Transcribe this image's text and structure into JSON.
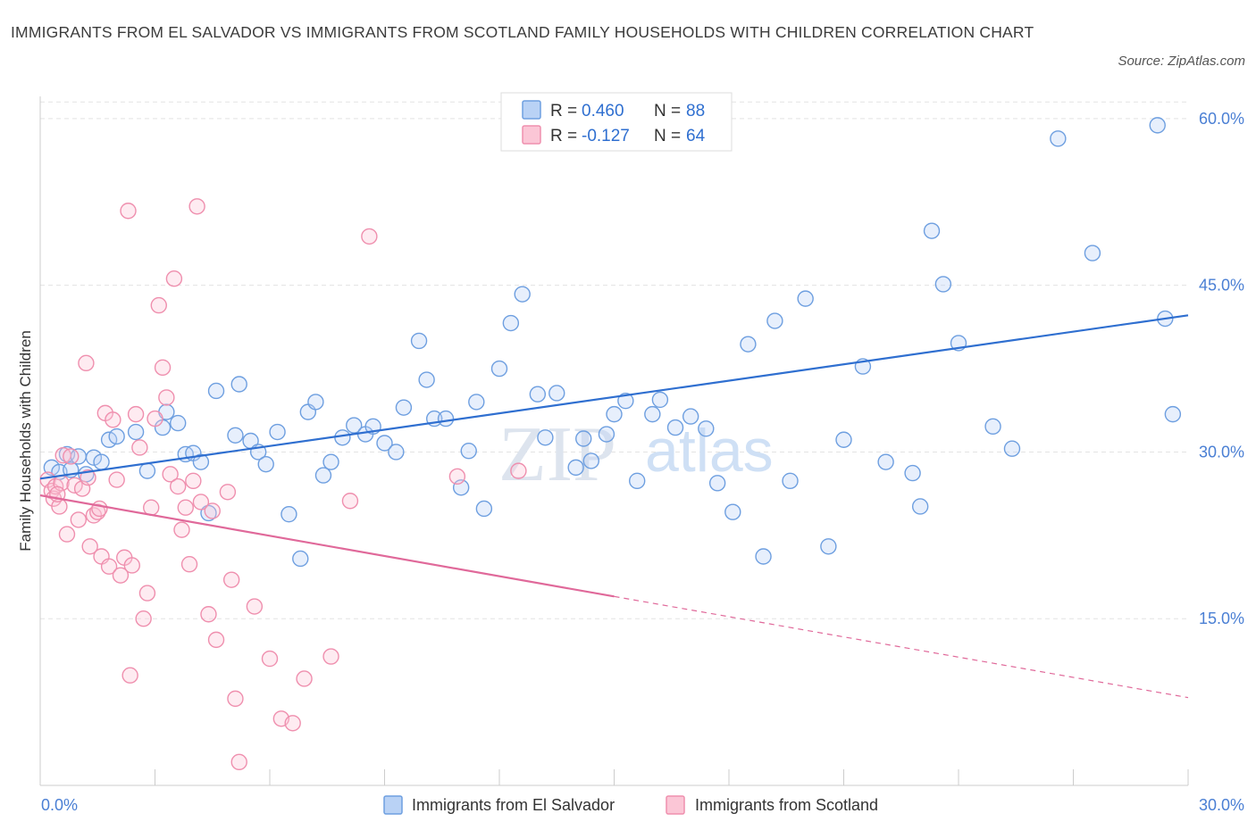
{
  "title": "IMMIGRANTS FROM EL SALVADOR VS IMMIGRANTS FROM SCOTLAND FAMILY HOUSEHOLDS WITH CHILDREN CORRELATION CHART",
  "source": "Source: ZipAtlas.com",
  "watermark": {
    "zip": "ZIP",
    "atlas": "atlas"
  },
  "chart_data": {
    "type": "scatter",
    "title": "IMMIGRANTS FROM EL SALVADOR VS IMMIGRANTS FROM SCOTLAND FAMILY HOUSEHOLDS WITH CHILDREN CORRELATION CHART",
    "xlabel": "",
    "ylabel": "Family Households with Children",
    "xlim": [
      0,
      30
    ],
    "ylim": [
      0,
      62
    ],
    "x_tick_labels": [
      "0.0%",
      "30.0%"
    ],
    "y_ticks": [
      15,
      30,
      45,
      60
    ],
    "y_tick_labels": [
      "15.0%",
      "30.0%",
      "45.0%",
      "60.0%"
    ],
    "grid": true,
    "legend_position": "top-center",
    "colors": {
      "blue": "#6e9fe0",
      "blue_line": "#2f6fd0",
      "pink": "#ef8fae",
      "pink_line": "#e0699a",
      "label": "#4a7fd4"
    },
    "stats": [
      {
        "r_label": "R = ",
        "r_value": "0.460",
        "n_label": "N = ",
        "n_value": "88"
      },
      {
        "r_label": "R = ",
        "r_value": "-0.127",
        "n_label": "N = ",
        "n_value": "64"
      }
    ],
    "series": [
      {
        "name": "Immigrants from El Salvador",
        "color": "#6e9fe0",
        "trend": {
          "x0": 0,
          "y0": 27.6,
          "x1": 30,
          "y1": 42.3
        },
        "points": [
          [
            0.3,
            28.6
          ],
          [
            0.5,
            28.2
          ],
          [
            0.7,
            29.8
          ],
          [
            0.8,
            28.4
          ],
          [
            1.0,
            29.6
          ],
          [
            1.2,
            28.0
          ],
          [
            1.4,
            29.5
          ],
          [
            1.6,
            29.1
          ],
          [
            1.8,
            31.1
          ],
          [
            2.0,
            31.4
          ],
          [
            2.5,
            31.8
          ],
          [
            2.8,
            28.3
          ],
          [
            3.2,
            32.2
          ],
          [
            3.3,
            33.6
          ],
          [
            3.6,
            32.6
          ],
          [
            3.8,
            29.8
          ],
          [
            4.0,
            29.9
          ],
          [
            4.2,
            29.1
          ],
          [
            4.4,
            24.5
          ],
          [
            4.6,
            35.5
          ],
          [
            5.1,
            31.5
          ],
          [
            5.2,
            36.1
          ],
          [
            5.5,
            31.0
          ],
          [
            5.7,
            30.0
          ],
          [
            5.9,
            28.9
          ],
          [
            6.2,
            31.8
          ],
          [
            6.5,
            24.4
          ],
          [
            6.8,
            20.4
          ],
          [
            7.0,
            33.6
          ],
          [
            7.2,
            34.5
          ],
          [
            7.4,
            27.9
          ],
          [
            7.6,
            29.1
          ],
          [
            7.9,
            31.3
          ],
          [
            8.2,
            32.4
          ],
          [
            8.5,
            31.6
          ],
          [
            8.7,
            32.3
          ],
          [
            9.0,
            30.8
          ],
          [
            9.3,
            30.0
          ],
          [
            9.5,
            34.0
          ],
          [
            9.9,
            40.0
          ],
          [
            10.1,
            36.5
          ],
          [
            10.3,
            33.0
          ],
          [
            10.6,
            33.0
          ],
          [
            11.0,
            26.8
          ],
          [
            11.2,
            30.1
          ],
          [
            11.4,
            34.5
          ],
          [
            11.6,
            24.9
          ],
          [
            12.0,
            37.5
          ],
          [
            12.3,
            41.6
          ],
          [
            12.6,
            44.2
          ],
          [
            13.0,
            35.2
          ],
          [
            13.2,
            31.3
          ],
          [
            13.5,
            35.3
          ],
          [
            14.0,
            28.6
          ],
          [
            14.2,
            31.2
          ],
          [
            14.4,
            29.2
          ],
          [
            14.8,
            31.6
          ],
          [
            15.0,
            33.4
          ],
          [
            15.3,
            34.6
          ],
          [
            15.6,
            27.4
          ],
          [
            16.0,
            33.4
          ],
          [
            16.2,
            34.7
          ],
          [
            16.6,
            32.2
          ],
          [
            17.0,
            33.2
          ],
          [
            17.4,
            32.1
          ],
          [
            17.7,
            27.2
          ],
          [
            18.1,
            24.6
          ],
          [
            18.5,
            39.7
          ],
          [
            18.9,
            20.6
          ],
          [
            19.2,
            41.8
          ],
          [
            19.6,
            27.4
          ],
          [
            20.0,
            43.8
          ],
          [
            20.6,
            21.5
          ],
          [
            21.0,
            31.1
          ],
          [
            21.5,
            37.7
          ],
          [
            22.1,
            29.1
          ],
          [
            22.8,
            28.1
          ],
          [
            23.0,
            25.1
          ],
          [
            23.3,
            49.9
          ],
          [
            23.6,
            45.1
          ],
          [
            24.0,
            39.8
          ],
          [
            24.9,
            32.3
          ],
          [
            25.4,
            30.3
          ],
          [
            26.6,
            58.2
          ],
          [
            27.5,
            47.9
          ],
          [
            29.2,
            59.4
          ],
          [
            29.4,
            42.0
          ],
          [
            29.6,
            33.4
          ]
        ]
      },
      {
        "name": "Immigrants from Scotland",
        "color": "#ef8fae",
        "trend": {
          "x0": 0,
          "y0": 26.1,
          "x1": 15,
          "y1": 17.0,
          "dash_x1": 30,
          "dash_y1": 7.9
        },
        "points": [
          [
            0.2,
            27.5
          ],
          [
            0.3,
            26.5
          ],
          [
            0.35,
            25.8
          ],
          [
            0.4,
            26.9
          ],
          [
            0.5,
            25.1
          ],
          [
            0.55,
            27.2
          ],
          [
            0.6,
            29.7
          ],
          [
            0.7,
            22.6
          ],
          [
            0.8,
            29.6
          ],
          [
            0.9,
            27.0
          ],
          [
            1.0,
            23.9
          ],
          [
            1.1,
            26.7
          ],
          [
            1.2,
            38.0
          ],
          [
            1.3,
            21.5
          ],
          [
            1.4,
            24.3
          ],
          [
            1.5,
            24.6
          ],
          [
            1.6,
            20.6
          ],
          [
            1.7,
            33.5
          ],
          [
            1.8,
            19.7
          ],
          [
            1.9,
            32.9
          ],
          [
            2.0,
            27.5
          ],
          [
            2.1,
            18.9
          ],
          [
            2.2,
            20.5
          ],
          [
            2.3,
            51.7
          ],
          [
            2.4,
            19.8
          ],
          [
            2.5,
            33.4
          ],
          [
            2.6,
            30.4
          ],
          [
            2.7,
            15.0
          ],
          [
            2.8,
            17.3
          ],
          [
            2.9,
            25.0
          ],
          [
            3.0,
            33.0
          ],
          [
            3.1,
            43.2
          ],
          [
            3.2,
            37.6
          ],
          [
            3.3,
            34.9
          ],
          [
            3.4,
            28.0
          ],
          [
            3.5,
            45.6
          ],
          [
            3.6,
            26.9
          ],
          [
            3.7,
            23.0
          ],
          [
            3.8,
            25.0
          ],
          [
            3.9,
            19.9
          ],
          [
            4.0,
            27.4
          ],
          [
            4.1,
            52.1
          ],
          [
            4.2,
            25.5
          ],
          [
            4.4,
            15.4
          ],
          [
            4.5,
            24.7
          ],
          [
            4.6,
            13.1
          ],
          [
            4.9,
            26.4
          ],
          [
            5.0,
            18.5
          ],
          [
            5.1,
            7.8
          ],
          [
            5.2,
            2.1
          ],
          [
            5.6,
            16.1
          ],
          [
            6.0,
            11.4
          ],
          [
            6.3,
            6.0
          ],
          [
            6.6,
            5.6
          ],
          [
            6.9,
            9.6
          ],
          [
            7.6,
            11.6
          ],
          [
            8.1,
            25.6
          ],
          [
            8.6,
            49.4
          ],
          [
            10.9,
            27.8
          ],
          [
            12.5,
            28.3
          ],
          [
            2.35,
            9.9
          ],
          [
            1.25,
            27.7
          ],
          [
            1.55,
            24.9
          ],
          [
            0.45,
            26.2
          ]
        ]
      }
    ]
  }
}
